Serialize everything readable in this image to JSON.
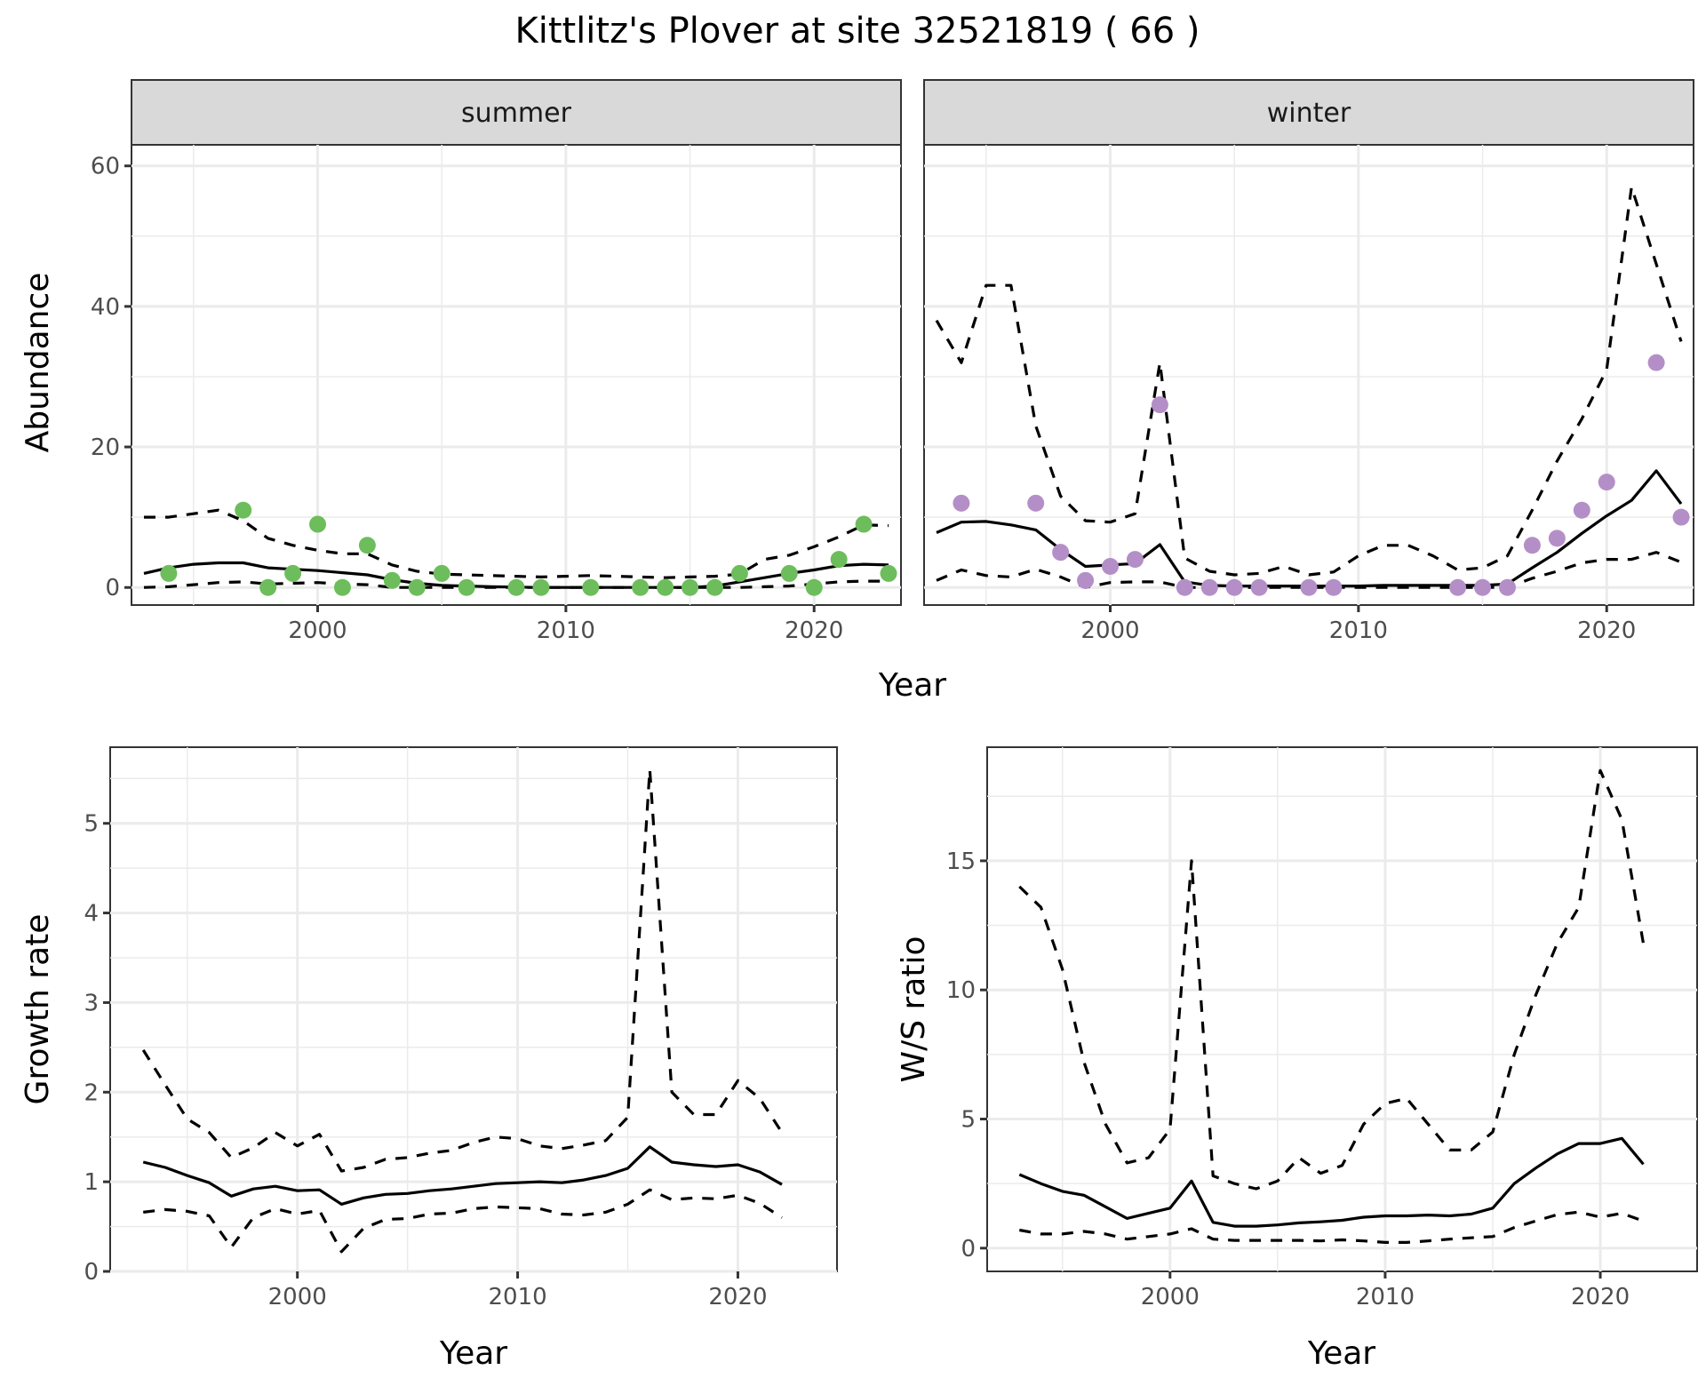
{
  "title": "Kittlitz's Plover at site 32521819 ( 66 )",
  "colors": {
    "summer": "#6dbd5c",
    "winter": "#b48fc7",
    "line": "#000000"
  },
  "chart_data": [
    {
      "id": "abundance-summer",
      "type": "line",
      "facet": "summer",
      "xlabel": "Year",
      "ylabel": "Abundance",
      "xlim": [
        1992.5,
        2023.5
      ],
      "ylim": [
        -2.5,
        63
      ],
      "xticks": [
        2000,
        2010,
        2020
      ],
      "xtick_labels": [
        "2000",
        "2010",
        "2020"
      ],
      "yticks": [
        0,
        20,
        40,
        60
      ],
      "ytick_labels": [
        "0",
        "20",
        "40",
        "60"
      ],
      "grid": true,
      "x": [
        1993,
        1994,
        1995,
        1996,
        1997,
        1998,
        1999,
        2000,
        2001,
        2002,
        2003,
        2004,
        2005,
        2006,
        2007,
        2008,
        2009,
        2010,
        2011,
        2012,
        2013,
        2014,
        2015,
        2016,
        2017,
        2018,
        2019,
        2020,
        2021,
        2022,
        2023
      ],
      "series": [
        {
          "name": "mean",
          "style": "solid",
          "values": [
            2.0,
            2.8,
            3.3,
            3.5,
            3.5,
            2.8,
            2.6,
            2.4,
            2.1,
            1.8,
            1.1,
            0.6,
            0.3,
            0.2,
            0.1,
            0.05,
            0.0,
            0.0,
            0.0,
            0.0,
            0.0,
            0.0,
            0.0,
            0.2,
            0.8,
            1.4,
            2.0,
            2.5,
            3.1,
            3.3,
            3.2
          ]
        },
        {
          "name": "upper",
          "style": "dashed",
          "values": [
            10.0,
            10.0,
            10.5,
            11.0,
            9.5,
            7.0,
            6.0,
            5.3,
            4.8,
            4.8,
            3.2,
            2.3,
            1.9,
            1.8,
            1.7,
            1.6,
            1.5,
            1.6,
            1.7,
            1.6,
            1.5,
            1.4,
            1.5,
            1.6,
            1.9,
            4.0,
            4.6,
            5.8,
            7.2,
            8.9,
            8.8
          ]
        },
        {
          "name": "lower",
          "style": "dashed",
          "values": [
            0.0,
            0.1,
            0.4,
            0.7,
            0.8,
            0.5,
            0.6,
            0.7,
            0.5,
            0.4,
            0.0,
            0.0,
            0.0,
            0.0,
            0.0,
            0.0,
            0.0,
            0.0,
            0.0,
            0.0,
            0.0,
            0.0,
            0.0,
            0.0,
            0.0,
            0.1,
            0.2,
            0.5,
            0.8,
            0.9,
            0.9
          ]
        }
      ],
      "points": {
        "name": "observed",
        "x": [
          1994,
          1997,
          1998,
          1999,
          2000,
          2001,
          2002,
          2003,
          2004,
          2005,
          2006,
          2008,
          2009,
          2011,
          2013,
          2014,
          2015,
          2016,
          2017,
          2019,
          2020,
          2021,
          2022,
          2023
        ],
        "y": [
          2,
          11,
          0,
          2,
          9,
          0,
          6,
          1,
          0,
          2,
          0,
          0,
          0,
          0,
          0,
          0,
          0,
          0,
          2,
          2,
          0,
          4,
          9,
          2
        ]
      }
    },
    {
      "id": "abundance-winter",
      "type": "line",
      "facet": "winter",
      "xlabel": "Year",
      "ylabel": "Abundance",
      "xlim": [
        1992.5,
        2023.5
      ],
      "ylim": [
        -2.5,
        63
      ],
      "xticks": [
        2000,
        2010,
        2020
      ],
      "xtick_labels": [
        "2000",
        "2010",
        "2020"
      ],
      "yticks": [
        0,
        20,
        40,
        60
      ],
      "grid": true,
      "x": [
        1993,
        1994,
        1995,
        1996,
        1997,
        1998,
        1999,
        2000,
        2001,
        2002,
        2003,
        2004,
        2005,
        2006,
        2007,
        2008,
        2009,
        2010,
        2011,
        2012,
        2013,
        2014,
        2015,
        2016,
        2017,
        2018,
        2019,
        2020,
        2021,
        2022,
        2023
      ],
      "series": [
        {
          "name": "mean",
          "style": "solid",
          "values": [
            7.8,
            9.3,
            9.4,
            8.9,
            8.2,
            5.4,
            3.0,
            3.2,
            3.4,
            6.1,
            0.8,
            0.3,
            0.2,
            0.2,
            0.2,
            0.2,
            0.2,
            0.2,
            0.3,
            0.3,
            0.3,
            0.3,
            0.3,
            0.5,
            2.8,
            5.0,
            7.7,
            10.2,
            12.4,
            16.6,
            11.9
          ]
        },
        {
          "name": "upper",
          "style": "dashed",
          "values": [
            38.0,
            32.0,
            43.0,
            43.0,
            23.0,
            13.0,
            9.5,
            9.3,
            10.5,
            32.0,
            4.2,
            2.3,
            1.8,
            2.0,
            3.0,
            1.8,
            2.2,
            4.5,
            6.0,
            6.0,
            4.5,
            2.5,
            2.8,
            4.5,
            11.0,
            18.0,
            24.0,
            31.0,
            57.0,
            46.0,
            35.0
          ]
        },
        {
          "name": "lower",
          "style": "dashed",
          "values": [
            1.0,
            2.5,
            1.7,
            1.5,
            2.6,
            1.5,
            0.0,
            0.7,
            0.8,
            0.8,
            0.0,
            0.0,
            0.0,
            0.0,
            0.0,
            0.0,
            0.0,
            0.0,
            0.0,
            0.0,
            0.0,
            0.0,
            0.0,
            0.0,
            1.3,
            2.3,
            3.5,
            4.0,
            4.0,
            5.0,
            3.6
          ]
        }
      ],
      "points": {
        "name": "observed",
        "x": [
          1994,
          1997,
          1998,
          1999,
          2000,
          2001,
          2002,
          2003,
          2004,
          2005,
          2006,
          2008,
          2009,
          2014,
          2015,
          2016,
          2017,
          2018,
          2019,
          2020,
          2022,
          2023
        ],
        "y": [
          12,
          12,
          5,
          1,
          3,
          4,
          26,
          0,
          0,
          0,
          0,
          0,
          0,
          0,
          0,
          0,
          6,
          7,
          11,
          15,
          32,
          10
        ]
      }
    },
    {
      "id": "growth-rate",
      "type": "line",
      "xlabel": "Year",
      "ylabel": "Growth rate",
      "xlim": [
        1991.5,
        2024.5
      ],
      "ylim": [
        0,
        5.85
      ],
      "xticks": [
        2000,
        2010,
        2020
      ],
      "xtick_labels": [
        "2000",
        "2010",
        "2020"
      ],
      "yticks": [
        0,
        1,
        2,
        3,
        4,
        5
      ],
      "ytick_labels": [
        "0",
        "1",
        "2",
        "3",
        "4",
        "5"
      ],
      "grid": true,
      "x": [
        1993,
        1994,
        1995,
        1996,
        1997,
        1998,
        1999,
        2000,
        2001,
        2002,
        2003,
        2004,
        2005,
        2006,
        2007,
        2008,
        2009,
        2010,
        2011,
        2012,
        2013,
        2014,
        2015,
        2016,
        2017,
        2018,
        2019,
        2020,
        2021,
        2022
      ],
      "series": [
        {
          "name": "mean",
          "style": "solid",
          "values": [
            1.22,
            1.16,
            1.07,
            0.99,
            0.84,
            0.92,
            0.95,
            0.9,
            0.91,
            0.75,
            0.82,
            0.86,
            0.87,
            0.9,
            0.92,
            0.95,
            0.98,
            0.99,
            1.0,
            0.99,
            1.02,
            1.07,
            1.15,
            1.39,
            1.22,
            1.19,
            1.17,
            1.19,
            1.11,
            0.97
          ]
        },
        {
          "name": "upper",
          "style": "dashed",
          "values": [
            2.47,
            2.08,
            1.7,
            1.55,
            1.27,
            1.38,
            1.55,
            1.4,
            1.53,
            1.12,
            1.16,
            1.25,
            1.27,
            1.32,
            1.35,
            1.44,
            1.5,
            1.48,
            1.4,
            1.37,
            1.41,
            1.46,
            1.72,
            5.6,
            2.0,
            1.75,
            1.75,
            2.13,
            1.93,
            1.55
          ]
        },
        {
          "name": "lower",
          "style": "dashed",
          "values": [
            0.66,
            0.69,
            0.67,
            0.62,
            0.27,
            0.6,
            0.7,
            0.64,
            0.68,
            0.22,
            0.48,
            0.58,
            0.59,
            0.64,
            0.65,
            0.7,
            0.72,
            0.71,
            0.7,
            0.64,
            0.63,
            0.66,
            0.75,
            0.91,
            0.8,
            0.82,
            0.81,
            0.85,
            0.76,
            0.6
          ]
        }
      ]
    },
    {
      "id": "ws-ratio",
      "type": "line",
      "xlabel": "Year",
      "ylabel": "W/S ratio",
      "xlim": [
        1991.5,
        2024.5
      ],
      "ylim": [
        -0.9,
        19.4
      ],
      "xticks": [
        2000,
        2010,
        2020
      ],
      "xtick_labels": [
        "2000",
        "2010",
        "2020"
      ],
      "yticks": [
        0,
        5,
        10,
        15
      ],
      "ytick_labels": [
        "0",
        "5",
        "10",
        "15"
      ],
      "grid": true,
      "x": [
        1993,
        1994,
        1995,
        1996,
        1997,
        1998,
        1999,
        2000,
        2001,
        2002,
        2003,
        2004,
        2005,
        2006,
        2007,
        2008,
        2009,
        2010,
        2011,
        2012,
        2013,
        2014,
        2015,
        2016,
        2017,
        2018,
        2019,
        2020,
        2021,
        2022
      ],
      "series": [
        {
          "name": "mean",
          "style": "solid",
          "values": [
            2.85,
            2.5,
            2.2,
            2.05,
            1.6,
            1.15,
            1.35,
            1.55,
            2.6,
            1.0,
            0.85,
            0.85,
            0.9,
            0.98,
            1.02,
            1.08,
            1.2,
            1.25,
            1.25,
            1.28,
            1.25,
            1.32,
            1.55,
            2.5,
            3.1,
            3.65,
            4.05,
            4.05,
            4.25,
            3.25
          ]
        },
        {
          "name": "upper",
          "style": "dashed",
          "values": [
            14.0,
            13.2,
            10.8,
            7.2,
            4.8,
            3.3,
            3.5,
            4.6,
            15.0,
            2.8,
            2.5,
            2.3,
            2.6,
            3.5,
            2.9,
            3.2,
            4.8,
            5.6,
            5.8,
            4.8,
            3.8,
            3.8,
            4.5,
            7.5,
            9.8,
            11.8,
            13.2,
            18.5,
            16.6,
            11.8
          ]
        },
        {
          "name": "lower",
          "style": "dashed",
          "values": [
            0.7,
            0.55,
            0.55,
            0.65,
            0.55,
            0.35,
            0.45,
            0.55,
            0.75,
            0.35,
            0.3,
            0.3,
            0.3,
            0.3,
            0.28,
            0.32,
            0.28,
            0.22,
            0.22,
            0.28,
            0.35,
            0.4,
            0.45,
            0.8,
            1.05,
            1.3,
            1.4,
            1.2,
            1.35,
            1.05
          ]
        }
      ]
    }
  ]
}
